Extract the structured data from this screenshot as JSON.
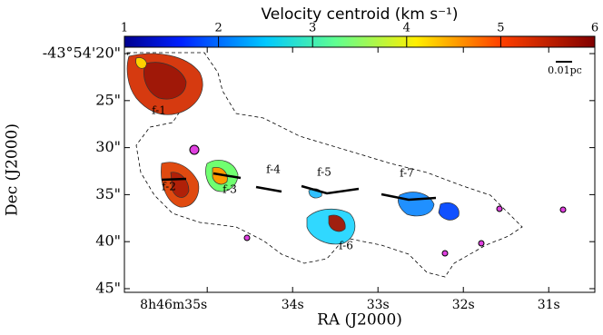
{
  "chart_data": {
    "type": "map",
    "title": "Velocity centroid (km s⁻¹)",
    "x_label": "RA (J2000)",
    "y_label": "Dec (J2000)",
    "clim": [
      1,
      6
    ],
    "cticks": [
      1,
      2,
      3,
      4,
      5,
      6
    ],
    "xlim": [
      35.97,
      30.46
    ],
    "xticks": [
      {
        "value": 35,
        "label": "8h46m35s"
      },
      {
        "value": 34,
        "label": "34s"
      },
      {
        "value": 33,
        "label": "33s"
      },
      {
        "value": 32,
        "label": "32s"
      },
      {
        "value": 31,
        "label": "31s"
      }
    ],
    "ylim": [
      19.32,
      45.39
    ],
    "yticks": [
      {
        "value": 20,
        "label": "-43°54'20\""
      },
      {
        "value": 25,
        "label": "25\""
      },
      {
        "value": 30,
        "label": "30\""
      },
      {
        "value": 35,
        "label": "35\""
      },
      {
        "value": 40,
        "label": "40\""
      },
      {
        "value": 45,
        "label": "45\""
      }
    ],
    "scale_bar": "0.01pc",
    "annotations": [
      "f-1",
      "f-2",
      "f-3",
      "f-4",
      "f-5",
      "f-6",
      "f-7"
    ]
  }
}
